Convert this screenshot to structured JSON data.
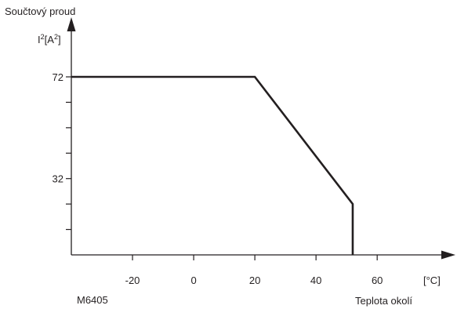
{
  "chart_data": {
    "type": "line",
    "title": "Součtový proud",
    "ylabel_base": "I",
    "ylabel_sup1": "2",
    "ylabel_mid": "[A",
    "ylabel_sup2": "2",
    "ylabel_end": "]",
    "xlabel": "Teplota okolí",
    "x_unit": "[°C]",
    "figure_id": "M6405",
    "x_tick_labels": [
      "-20",
      "0",
      "20",
      "40",
      "60"
    ],
    "x_tick_values": [
      -20,
      0,
      20,
      40,
      60
    ],
    "y_tick_labels": [
      "72",
      "32"
    ],
    "y_tick_values": [
      72,
      32
    ],
    "y_minor_ticks": [
      12,
      22,
      42,
      52,
      62
    ],
    "xlim": [
      -40,
      88
    ],
    "ylim": [
      2,
      82
    ],
    "series": [
      {
        "x": [
          -40,
          20,
          52,
          52
        ],
        "y": [
          72,
          72,
          22,
          2
        ]
      }
    ],
    "grid": false,
    "colors": {
      "line": "#231f20",
      "axis": "#231f20"
    }
  }
}
